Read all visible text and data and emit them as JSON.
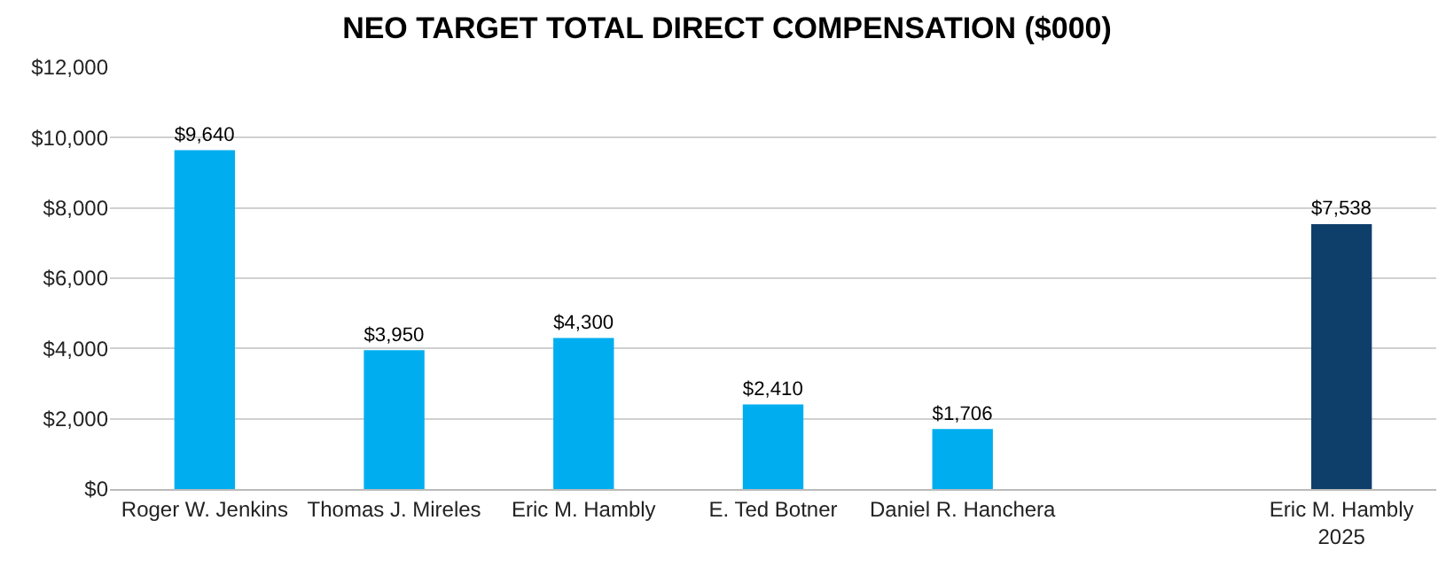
{
  "chart_data": {
    "type": "bar",
    "title": "NEO TARGET TOTAL DIRECT COMPENSATION ($000)",
    "categories": [
      "Roger W. Jenkins",
      "Thomas J. Mireles",
      "Eric M. Hambly",
      "E. Ted Botner",
      "Daniel R. Hanchera",
      null,
      "Eric M. Hambly\n2025"
    ],
    "values": [
      9640,
      3950,
      4300,
      2410,
      1706,
      null,
      7538
    ],
    "colors": [
      "#00aeef",
      "#00aeef",
      "#00aeef",
      "#00aeef",
      "#00aeef",
      "#00aeef",
      "#0e3f6b"
    ],
    "value_labels": [
      "$9,640",
      "$3,950",
      "$4,300",
      "$2,410",
      "$1,706",
      null,
      "$7,538"
    ],
    "ylim": [
      0,
      12000
    ],
    "yticks": [
      {
        "value": 0,
        "label": "$0"
      },
      {
        "value": 2000,
        "label": "$2,000"
      },
      {
        "value": 4000,
        "label": "$4,000"
      },
      {
        "value": 6000,
        "label": "$6,000"
      },
      {
        "value": 8000,
        "label": "$8,000"
      },
      {
        "value": 10000,
        "label": "$10,000"
      },
      {
        "value": 12000,
        "label": "$12,000"
      }
    ],
    "grid": "y",
    "legend": false
  }
}
